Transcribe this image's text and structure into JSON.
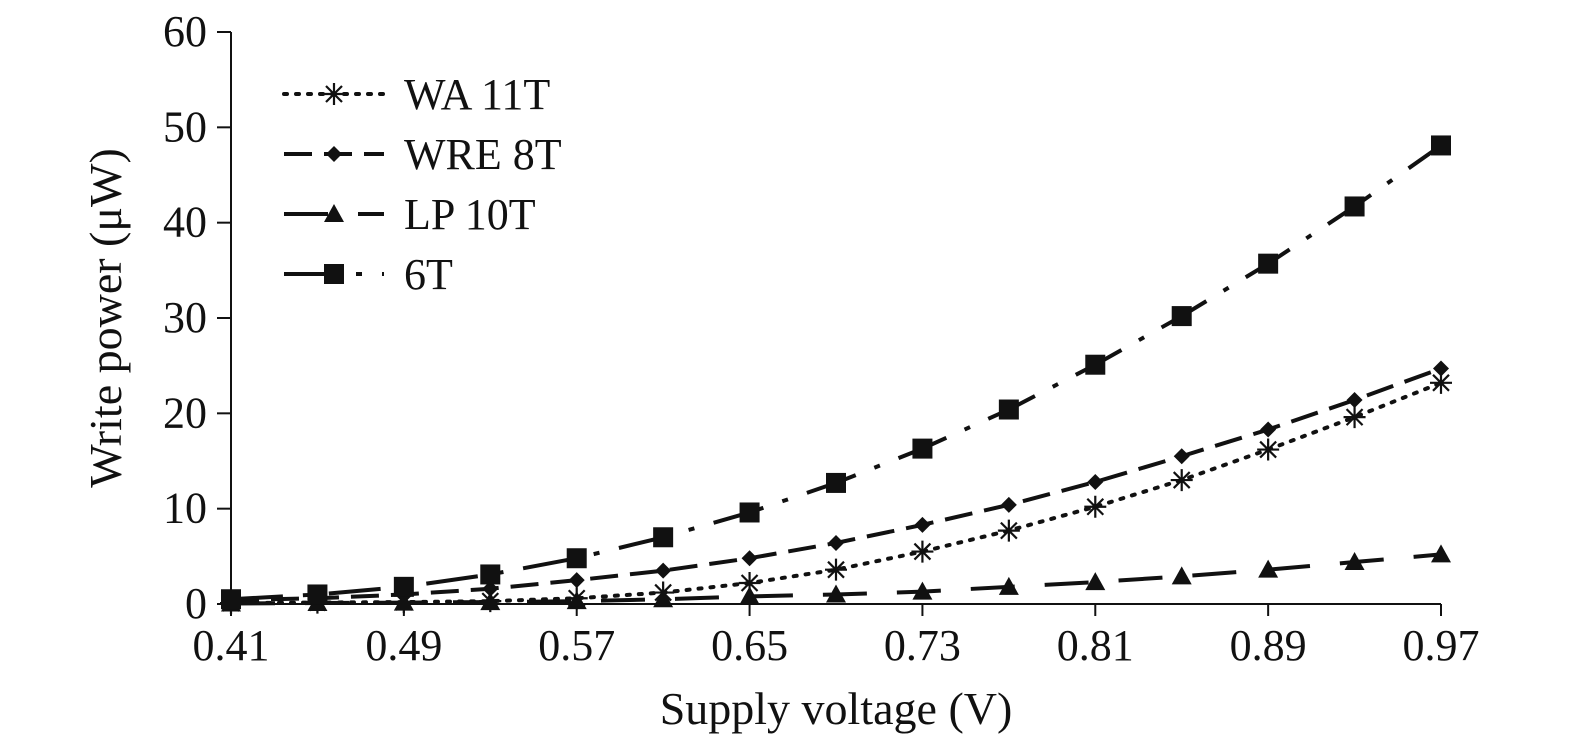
{
  "chart_data": {
    "type": "line",
    "title": "",
    "xlabel": "Supply voltage (V)",
    "ylabel": "Write power (μW)",
    "xlim": [
      0.41,
      0.97
    ],
    "ylim": [
      0,
      60
    ],
    "xticks": [
      "0.41",
      "0.49",
      "0.57",
      "0.65",
      "0.73",
      "0.81",
      "0.89",
      "0.97"
    ],
    "yticks": [
      "0",
      "10",
      "20",
      "30",
      "40",
      "50",
      "60"
    ],
    "grid": false,
    "legend_position": "top-left",
    "x": [
      0.41,
      0.45,
      0.49,
      0.53,
      0.57,
      0.61,
      0.65,
      0.69,
      0.73,
      0.77,
      0.81,
      0.85,
      0.89,
      0.93,
      0.97
    ],
    "series": [
      {
        "name": "WA 11T",
        "marker": "asterisk",
        "dash": "dotted",
        "values": [
          0.1,
          0.15,
          0.2,
          0.3,
          0.6,
          1.2,
          2.2,
          3.6,
          5.5,
          7.7,
          10.2,
          13.0,
          16.2,
          19.6,
          23.2
        ]
      },
      {
        "name": "WRE 8T",
        "marker": "diamond",
        "dash": "dashed",
        "values": [
          0.4,
          0.6,
          1.0,
          1.6,
          2.5,
          3.5,
          4.8,
          6.4,
          8.3,
          10.4,
          12.8,
          15.5,
          18.3,
          21.4,
          24.7
        ]
      },
      {
        "name": "LP 10T",
        "marker": "triangle",
        "dash": "longdash",
        "values": [
          0.05,
          0.1,
          0.15,
          0.2,
          0.3,
          0.5,
          0.8,
          1.0,
          1.3,
          1.8,
          2.3,
          2.9,
          3.6,
          4.4,
          5.2
        ]
      },
      {
        "name": "6T",
        "marker": "square",
        "dash": "dashdot",
        "values": [
          0.5,
          1.0,
          1.8,
          3.1,
          4.8,
          7.0,
          9.6,
          12.7,
          16.3,
          20.4,
          25.1,
          30.2,
          35.7,
          41.7,
          48.1
        ]
      }
    ]
  }
}
